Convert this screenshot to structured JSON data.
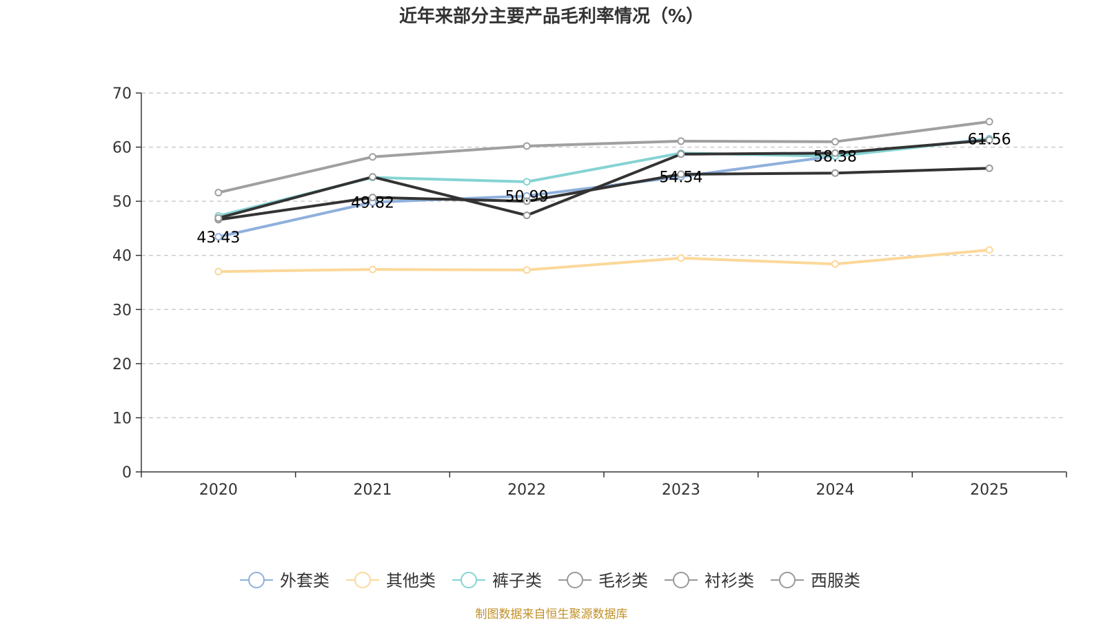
{
  "chart_data": {
    "type": "line",
    "title": "近年来部分主要产品毛利率情况（%）",
    "categories": [
      "2020",
      "2021",
      "2022",
      "2023",
      "2024",
      "2025"
    ],
    "ylim": [
      0,
      70
    ],
    "yticks": [
      0,
      10,
      20,
      30,
      40,
      50,
      60,
      70
    ],
    "grid": true,
    "legend_position": "bottom-center",
    "series": [
      {
        "name": "外套类",
        "color": "#8fb0dc",
        "values": [
          43.43,
          49.82,
          50.99,
          54.54,
          58.38,
          61.56
        ],
        "labels": [
          "43.43",
          "49.82",
          "50.99",
          "54.54",
          "58.38",
          "61.56"
        ]
      },
      {
        "name": "其他类",
        "color": "#fbd89a",
        "values": [
          37.0,
          37.4,
          37.3,
          39.5,
          38.4,
          41.0
        ]
      },
      {
        "name": "裤子类",
        "color": "#86d3d3",
        "values": [
          47.3,
          54.4,
          53.6,
          58.9,
          58.3,
          61.5
        ]
      },
      {
        "name": "毛衫类",
        "color": "#333333",
        "values": [
          46.6,
          50.7,
          50.0,
          55.0,
          55.2,
          56.1
        ]
      },
      {
        "name": "衬衫类",
        "color": "#333333",
        "values": [
          46.9,
          54.5,
          47.4,
          58.7,
          58.9,
          61.3
        ]
      },
      {
        "name": "西服类",
        "color": "#a0a0a0",
        "values": [
          51.6,
          58.2,
          60.2,
          61.1,
          61.0,
          64.7
        ]
      }
    ],
    "source": "制图数据来自恒生聚源数据库",
    "source_color": "#c0902a"
  }
}
